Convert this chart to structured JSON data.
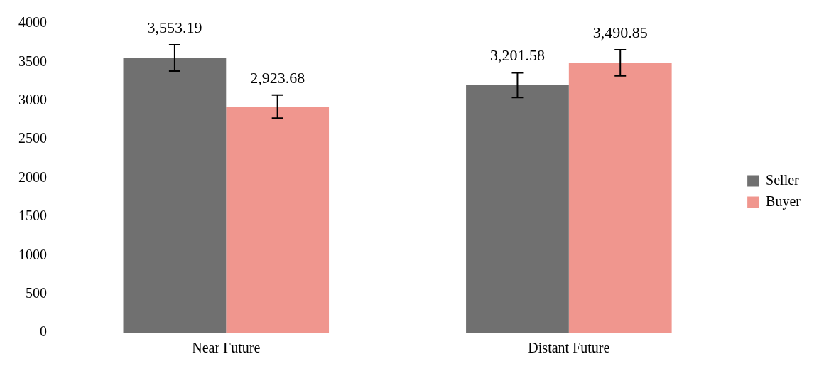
{
  "chart_data": {
    "type": "bar",
    "categories": [
      "Near Future",
      "Distant Future"
    ],
    "series": [
      {
        "name": "Seller",
        "color": "#707070",
        "values": [
          3553.19,
          3201.58
        ],
        "errors": [
          170,
          160
        ],
        "value_labels": [
          "3,553.19",
          "3,201.58"
        ]
      },
      {
        "name": "Buyer",
        "color": "#f0968e",
        "values": [
          2923.68,
          3490.85
        ],
        "errors": [
          150,
          170
        ],
        "value_labels": [
          "2,923.68",
          "3,490.85"
        ]
      }
    ],
    "ylim": [
      0,
      4000
    ],
    "yticks": [
      0,
      500,
      1000,
      1500,
      2000,
      2500,
      3000,
      3500,
      4000
    ],
    "grid": false,
    "legend": "right"
  }
}
